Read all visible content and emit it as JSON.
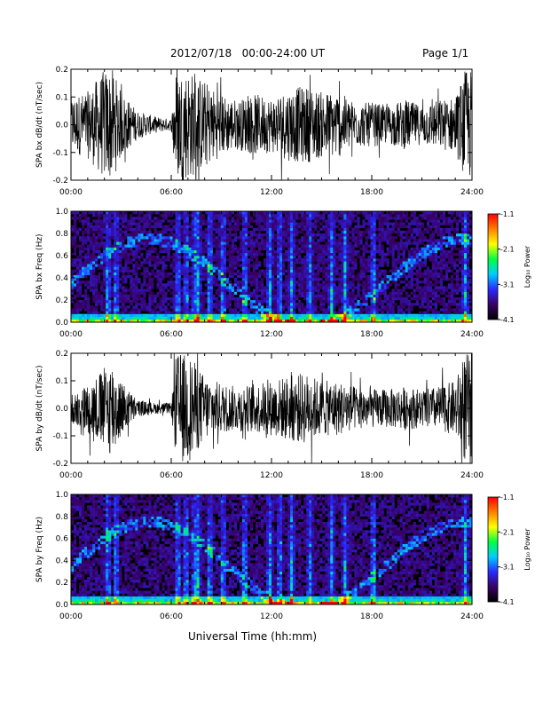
{
  "header": {
    "title": "2012/07/18   00:00-24:00 UT",
    "page": "Page 1/1"
  },
  "x_axis_label": "Universal Time (hh:mm)",
  "x_tick_labels": [
    "00:00",
    "06:00",
    "12:00",
    "18:00",
    "24:00"
  ],
  "colorbar": {
    "label": "Log₁₀ Power",
    "tick_labels": [
      "-1.1",
      "-2.1",
      "-3.1",
      "-4.1"
    ],
    "colors": [
      "#000000",
      "#3a0066",
      "#2a2aff",
      "#00ccff",
      "#00ff40",
      "#ffff00",
      "#ff7f00",
      "#ff0000"
    ]
  },
  "chart_data": [
    {
      "type": "line",
      "ylabel": "SPA bx dB/dt (nT/sec)",
      "xlim": [
        "00:00",
        "24:00"
      ],
      "ylim": [
        -0.2,
        0.2
      ],
      "y_tick_labels": [
        "0.2",
        "0.1",
        "0.0",
        "-0.1",
        "-0.2"
      ],
      "envelope_hours": [
        0,
        1,
        2,
        2.5,
        3,
        4,
        5,
        6,
        6.3,
        7,
        8,
        9,
        10,
        11,
        12,
        13,
        14,
        15,
        16,
        17,
        18,
        19,
        20,
        21,
        22,
        23,
        23.6,
        24
      ],
      "envelope_amplitude": [
        0.1,
        0.12,
        0.2,
        0.2,
        0.12,
        0.05,
        0.03,
        0.02,
        0.2,
        0.2,
        0.16,
        0.11,
        0.09,
        0.11,
        0.1,
        0.13,
        0.14,
        0.12,
        0.12,
        0.08,
        0.08,
        0.07,
        0.09,
        0.07,
        0.09,
        0.1,
        0.2,
        0.2
      ]
    },
    {
      "type": "heatmap",
      "ylabel": "SPA bx Freq (Hz)",
      "xlim": [
        "00:00",
        "24:00"
      ],
      "ylim": [
        0,
        1.0
      ],
      "y_tick_labels": [
        "1.0",
        "0.8",
        "0.6",
        "0.4",
        "0.2",
        "0.0"
      ],
      "color_range": [
        -4.1,
        -1.1
      ]
    },
    {
      "type": "line",
      "ylabel": "SPA by dB/dt (nT/sec)",
      "xlim": [
        "00:00",
        "24:00"
      ],
      "ylim": [
        -0.2,
        0.2
      ],
      "y_tick_labels": [
        "0.2",
        "0.1",
        "0.0",
        "-0.1",
        "-0.2"
      ],
      "envelope_hours": [
        0,
        1,
        2,
        2.5,
        3,
        4,
        5,
        6,
        6.3,
        7,
        8,
        9,
        10,
        11,
        12,
        13,
        14,
        15,
        16,
        17,
        18,
        19,
        20,
        21,
        22,
        23,
        23.6,
        24
      ],
      "envelope_amplitude": [
        0.05,
        0.09,
        0.15,
        0.18,
        0.1,
        0.03,
        0.02,
        0.02,
        0.2,
        0.2,
        0.12,
        0.09,
        0.08,
        0.09,
        0.1,
        0.12,
        0.13,
        0.1,
        0.1,
        0.08,
        0.07,
        0.07,
        0.08,
        0.07,
        0.08,
        0.1,
        0.2,
        0.2
      ]
    },
    {
      "type": "heatmap",
      "ylabel": "SPA by Freq (Hz)",
      "xlim": [
        "00:00",
        "24:00"
      ],
      "ylim": [
        0,
        1.0
      ],
      "y_tick_labels": [
        "1.0",
        "0.8",
        "0.6",
        "0.4",
        "0.2",
        "0.0"
      ],
      "color_range": [
        -4.1,
        -1.1
      ]
    }
  ]
}
